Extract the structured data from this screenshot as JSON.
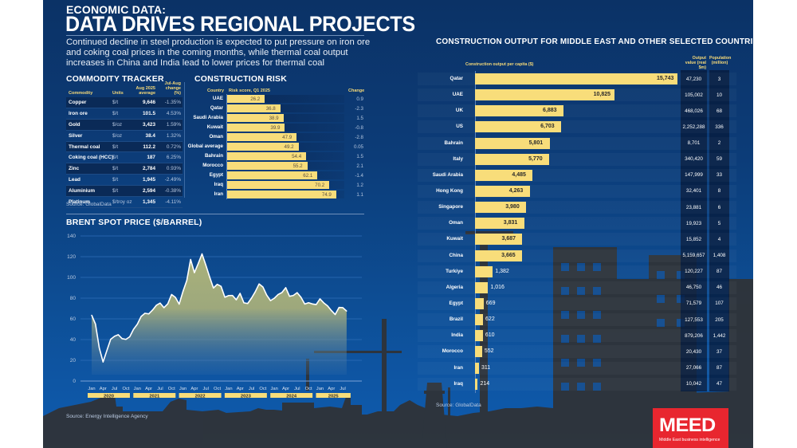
{
  "header": {
    "kicker": "ECONOMIC DATA:",
    "headline": "DATA DRIVES REGIONAL PROJECTS",
    "standfirst": "Continued decline in steel production is expected to put pressure on iron ore and coking coal prices in the coming months, while thermal coal output increases in China and India lead to lower prices for thermal coal"
  },
  "commodity_tracker": {
    "title": "COMMODITY TRACKER",
    "columns": [
      "Commodity",
      "Units",
      "Aug 2025 average",
      "Jul-Aug change (%)"
    ],
    "rows": [
      {
        "commodity": "Copper",
        "units": "$/t",
        "average": "9,646",
        "change": "-1.35%"
      },
      {
        "commodity": "Iron ore",
        "units": "$/t",
        "average": "101.5",
        "change": "4.53%"
      },
      {
        "commodity": "Gold",
        "units": "$/oz",
        "average": "3,423",
        "change": "1.59%"
      },
      {
        "commodity": "Silver",
        "units": "$/oz",
        "average": "38.4",
        "change": "1.32%"
      },
      {
        "commodity": "Thermal coal",
        "units": "$/t",
        "average": "112.2",
        "change": "0.72%"
      },
      {
        "commodity": "Coking coal (HCC)",
        "units": "$/t",
        "average": "187",
        "change": "6.25%"
      },
      {
        "commodity": "Zinc",
        "units": "$/t",
        "average": "2,784",
        "change": "0.93%"
      },
      {
        "commodity": "Lead",
        "units": "$/t",
        "average": "1,945",
        "change": "-2.49%"
      },
      {
        "commodity": "Aluminium",
        "units": "$/t",
        "average": "2,594",
        "change": "-0.38%"
      },
      {
        "commodity": "Platinum",
        "units": "$/troy oz",
        "average": "1,345",
        "change": "-4.11%"
      }
    ],
    "source": "Source: GlobalData"
  },
  "construction_risk": {
    "title": "CONSTRUCTION RISK",
    "col_country": "Country",
    "col_score": "Risk score, Q1 2025",
    "col_change": "Change",
    "max": 100
  },
  "brent": {
    "title": "BRENT SPOT PRICE ($/BARREL)",
    "source": "Source: Energy Intelligence Agency"
  },
  "construction_output": {
    "title": "CONSTRUCTION OUTPUT FOR MIDDLE EAST AND OTHER SELECTED COUNTRIES",
    "subtitle": "Construction output per capita ($)",
    "col_output": "Output value (real $m)",
    "col_pop": "Population (million)",
    "source": "Source: GlobalData"
  },
  "logo": {
    "word": "MEED",
    "tagline": "Middle East business intelligence",
    "color": "#e8262f"
  },
  "colors": {
    "bar": "#f8dd7a",
    "background_top": "#0b3266",
    "background_bottom": "#0f5cb0",
    "area_fill": "#a9b078"
  },
  "chart_data": [
    {
      "type": "bar",
      "orientation": "horizontal",
      "title": "CONSTRUCTION RISK",
      "xlabel": "Risk score, Q1 2025",
      "categories": [
        "UAE",
        "Qatar",
        "Saudi Arabia",
        "Kuwait",
        "Oman",
        "Global average",
        "Bahrain",
        "Morocco",
        "Egypt",
        "Iraq",
        "Iran"
      ],
      "values": [
        26.2,
        36.8,
        38.9,
        39.9,
        47.9,
        49.2,
        54.4,
        55.2,
        62.1,
        70.2,
        74.9
      ],
      "value_labels": [
        "26.2",
        "36.8",
        "38.9",
        "39.9",
        "47.9",
        "49.2",
        "54.4",
        "55.2",
        "62.1",
        "70.2",
        "74.9"
      ],
      "change": [
        "0.9",
        "-2.3",
        "1.5",
        "-0.8",
        "-2.8",
        "0.05",
        "1.5",
        "2.1",
        "-1.4",
        "1.2",
        "1.1"
      ],
      "xlim": [
        0,
        100
      ]
    },
    {
      "type": "area",
      "title": "BRENT SPOT PRICE ($/BARREL)",
      "xlabel": "",
      "ylabel": "",
      "ylim": [
        0,
        140
      ],
      "yticks": [
        0,
        20,
        40,
        60,
        80,
        100,
        120,
        140
      ],
      "grid": true,
      "x_month_ticks": [
        "Jan",
        "Apr",
        "Jul",
        "Oct"
      ],
      "years": [
        "2020",
        "2021",
        "2022",
        "2023",
        "2024",
        "2025"
      ],
      "x_start": "Jan 2020",
      "x_end": "Jul 2025",
      "values": [
        63.6,
        55.0,
        32.0,
        18.4,
        29.4,
        40.3,
        43.2,
        44.7,
        40.9,
        40.2,
        42.7,
        49.9,
        54.8,
        62.3,
        65.4,
        64.8,
        68.5,
        73.1,
        75.2,
        70.8,
        74.5,
        83.5,
        80.8,
        74.2,
        86.5,
        97.0,
        117.3,
        104.6,
        113.3,
        122.7,
        111.9,
        100.5,
        89.8,
        93.3,
        91.4,
        80.9,
        82.5,
        82.6,
        78.4,
        84.6,
        75.5,
        74.8,
        80.0,
        86.2,
        93.7,
        90.8,
        82.9,
        77.6,
        79.9,
        83.5,
        85.4,
        90.1,
        81.8,
        82.6,
        85.3,
        80.9,
        74.3,
        75.6,
        74.4,
        73.8,
        79.3,
        75.4,
        72.5,
        68.0,
        64.2,
        71.0,
        70.8,
        67.5
      ]
    },
    {
      "type": "bar",
      "orientation": "horizontal",
      "title": "CONSTRUCTION OUTPUT FOR MIDDLE EAST AND OTHER SELECTED COUNTRIES",
      "xlabel": "Construction output per capita ($)",
      "categories": [
        "Qatar",
        "UAE",
        "UK",
        "US",
        "Bahrain",
        "Italy",
        "Saudi Arabia",
        "Hong Kong",
        "Singapore",
        "Oman",
        "Kuwait",
        "China",
        "Turkiye",
        "Algeria",
        "Egypt",
        "Brazil",
        "India",
        "Morocco",
        "Iran",
        "Iraq"
      ],
      "values": [
        15743,
        10825,
        6883,
        6703,
        5801,
        5770,
        4485,
        4263,
        3980,
        3831,
        3687,
        3665,
        1382,
        1016,
        669,
        622,
        610,
        552,
        311,
        214
      ],
      "value_labels": [
        "15,743",
        "10,825",
        "6,883",
        "6,703",
        "5,801",
        "5,770",
        "4,485",
        "4,263",
        "3,980",
        "3,831",
        "3,687",
        "3,665",
        "1,382",
        "1,016",
        "669",
        "622",
        "610",
        "552",
        "311",
        "214"
      ],
      "output_value_real_usd_m": [
        "47,230",
        "105,002",
        "468,026",
        "2,252,288",
        "8,701",
        "340,420",
        "147,999",
        "32,401",
        "23,881",
        "19,923",
        "15,852",
        "5,159,657",
        "120,227",
        "46,750",
        "71,579",
        "127,553",
        "879,206",
        "20,430",
        "27,066",
        "10,042"
      ],
      "population_million": [
        "3",
        "10",
        "68",
        "336",
        "2",
        "59",
        "33",
        "8",
        "6",
        "5",
        "4",
        "1,408",
        "87",
        "46",
        "107",
        "205",
        "1,442",
        "37",
        "87",
        "47"
      ],
      "xlim": [
        0,
        15743
      ]
    }
  ]
}
